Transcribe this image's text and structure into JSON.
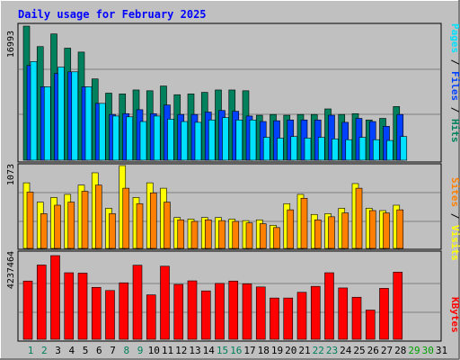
{
  "title": "Daily usage for February 2025",
  "colors": {
    "background": "#C0C0C0",
    "frame_light": "#FFFFFF",
    "frame_dark": "#808080",
    "title_text": "#0000FF",
    "hits": "#00805C",
    "files": "#0040FF",
    "pages": "#00E0FF",
    "visits": "#FFFF00",
    "sites": "#FF8000",
    "kbytes": "#FF0000",
    "weekend_label": "#00805C",
    "weekday_label": "#008040",
    "future_label": "#00A000",
    "axis_label": "#000000"
  },
  "chart_data": [
    {
      "type": "bar",
      "panel": "traffic",
      "title": "Daily usage for February 2025",
      "ylabel_right": [
        "Pages",
        "Files",
        "Hits"
      ],
      "ymax_label": "16993",
      "ylim": [
        0,
        16993
      ],
      "grid": true,
      "categories": [
        "1",
        "2",
        "3",
        "4",
        "5",
        "6",
        "7",
        "8",
        "9",
        "10",
        "11",
        "12",
        "13",
        "14",
        "15",
        "16",
        "17",
        "18",
        "19",
        "20",
        "21",
        "22",
        "23",
        "24",
        "25",
        "26",
        "27",
        "28"
      ],
      "series": [
        {
          "name": "Hits",
          "color": "#00805C",
          "values": [
            16993,
            14400,
            16000,
            14200,
            13700,
            10300,
            8500,
            8400,
            8900,
            8800,
            9400,
            8300,
            8400,
            8600,
            8900,
            8900,
            8800,
            5700,
            5800,
            5700,
            5800,
            5800,
            6500,
            5800,
            5900,
            5100,
            5300,
            6800
          ]
        },
        {
          "name": "Files",
          "color": "#0040FF",
          "values": [
            12000,
            9300,
            11000,
            11200,
            9300,
            7200,
            5800,
            5900,
            6400,
            5900,
            7000,
            5800,
            5800,
            6100,
            6300,
            6200,
            5600,
            4900,
            5000,
            5100,
            5100,
            5100,
            5700,
            4800,
            5300,
            4900,
            4300,
            5800
          ]
        },
        {
          "name": "Pages",
          "color": "#00E0FF",
          "values": [
            12500,
            9300,
            11800,
            11200,
            9300,
            7200,
            5600,
            5500,
            4900,
            5600,
            5200,
            4900,
            4800,
            5100,
            5400,
            5100,
            5100,
            2900,
            2800,
            3000,
            2800,
            2900,
            2700,
            2600,
            2900,
            2600,
            2500,
            3000
          ]
        }
      ]
    },
    {
      "type": "bar",
      "panel": "visitors",
      "ylabel_right": [
        "Sites",
        "Visits"
      ],
      "ymax_label": "1073",
      "ylim": [
        0,
        1073
      ],
      "grid": true,
      "categories": [
        "1",
        "2",
        "3",
        "4",
        "5",
        "6",
        "7",
        "8",
        "9",
        "10",
        "11",
        "12",
        "13",
        "14",
        "15",
        "16",
        "17",
        "18",
        "19",
        "20",
        "21",
        "22",
        "23",
        "24",
        "25",
        "26",
        "27",
        "28"
      ],
      "series": [
        {
          "name": "Visits",
          "color": "#FFFF00",
          "values": [
            850,
            600,
            660,
            700,
            820,
            980,
            520,
            1073,
            660,
            850,
            780,
            400,
            380,
            400,
            400,
            380,
            360,
            370,
            300,
            580,
            700,
            440,
            450,
            520,
            840,
            520,
            490,
            560
          ]
        },
        {
          "name": "Sites",
          "color": "#FF8000",
          "values": [
            730,
            450,
            560,
            600,
            740,
            820,
            450,
            780,
            580,
            720,
            600,
            370,
            350,
            370,
            360,
            350,
            330,
            320,
            270,
            500,
            650,
            370,
            410,
            460,
            780,
            490,
            460,
            500
          ]
        }
      ]
    },
    {
      "type": "bar",
      "panel": "kbytes",
      "ylabel_right": [
        "KBytes"
      ],
      "ymax_label": "4237464",
      "ylim": [
        0,
        4237464
      ],
      "grid": true,
      "categories": [
        "1",
        "2",
        "3",
        "4",
        "5",
        "6",
        "7",
        "8",
        "9",
        "10",
        "11",
        "12",
        "13",
        "14",
        "15",
        "16",
        "17",
        "18",
        "19",
        "20",
        "21",
        "22",
        "23",
        "24",
        "25",
        "26",
        "27",
        "28"
      ],
      "series": [
        {
          "name": "KBytes",
          "color": "#FF0000",
          "values": [
            2950000,
            3760000,
            4237464,
            3370000,
            3350000,
            2630000,
            2470000,
            2860000,
            3750000,
            2250000,
            3700000,
            2780000,
            2960000,
            2450000,
            2830000,
            2950000,
            2810000,
            2650000,
            2090000,
            2090000,
            2380000,
            2680000,
            3370000,
            2600000,
            2130000,
            1480000,
            2580000,
            3400000
          ]
        }
      ]
    }
  ],
  "day_labels": [
    {
      "text": "1",
      "kind": "weekend"
    },
    {
      "text": "2",
      "kind": "weekend"
    },
    {
      "text": "3",
      "kind": "weekday"
    },
    {
      "text": "4",
      "kind": "weekday"
    },
    {
      "text": "5",
      "kind": "weekday"
    },
    {
      "text": "6",
      "kind": "weekday"
    },
    {
      "text": "7",
      "kind": "weekday"
    },
    {
      "text": "8",
      "kind": "weekend"
    },
    {
      "text": "9",
      "kind": "weekend"
    },
    {
      "text": "10",
      "kind": "weekday"
    },
    {
      "text": "11",
      "kind": "weekday"
    },
    {
      "text": "12",
      "kind": "weekday"
    },
    {
      "text": "13",
      "kind": "weekday"
    },
    {
      "text": "14",
      "kind": "weekday"
    },
    {
      "text": "15",
      "kind": "weekend"
    },
    {
      "text": "16",
      "kind": "weekend"
    },
    {
      "text": "17",
      "kind": "weekday"
    },
    {
      "text": "18",
      "kind": "weekday"
    },
    {
      "text": "19",
      "kind": "weekday"
    },
    {
      "text": "20",
      "kind": "weekday"
    },
    {
      "text": "21",
      "kind": "weekday"
    },
    {
      "text": "22",
      "kind": "weekend"
    },
    {
      "text": "23",
      "kind": "weekend"
    },
    {
      "text": "24",
      "kind": "weekday"
    },
    {
      "text": "25",
      "kind": "weekday"
    },
    {
      "text": "26",
      "kind": "weekday"
    },
    {
      "text": "27",
      "kind": "weekday"
    },
    {
      "text": "28",
      "kind": "weekday"
    },
    {
      "text": "29",
      "kind": "future"
    },
    {
      "text": "30",
      "kind": "future"
    },
    {
      "text": "31",
      "kind": "weekday"
    }
  ]
}
